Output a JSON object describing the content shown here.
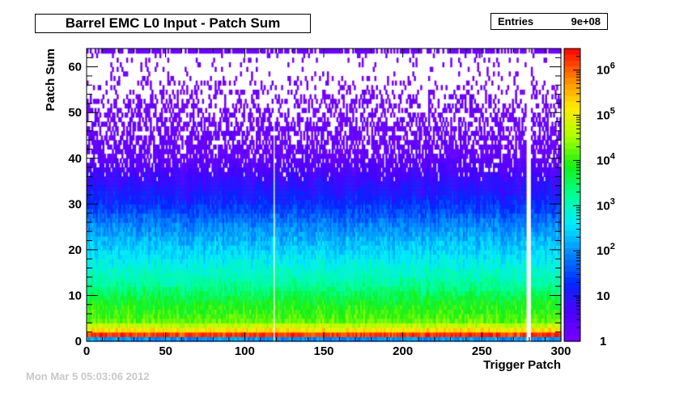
{
  "chart_data": {
    "type": "heatmap",
    "title": "Barrel EMC L0 Input - Patch Sum",
    "xlabel": "Trigger Patch",
    "ylabel": "Patch Sum",
    "xlim": [
      0,
      300
    ],
    "ylim": [
      0,
      64
    ],
    "x_ticks": [
      "0",
      "50",
      "100",
      "150",
      "200",
      "250",
      "300"
    ],
    "y_ticks": [
      "0",
      "10",
      "20",
      "30",
      "40",
      "50",
      "60"
    ],
    "z_scale": "log",
    "zlim": [
      1,
      3000000
    ],
    "z_ticks": [
      "1",
      "10",
      "10^2",
      "10^3",
      "10^4",
      "10^5",
      "10^6"
    ],
    "stats": {
      "label": "Entries",
      "value": "9e+08"
    },
    "empty_columns": [
      118,
      278,
      279,
      280
    ],
    "profile": [
      {
        "y": 0,
        "log10_counts": 2.0
      },
      {
        "y": 1,
        "log10_counts": 6.2
      },
      {
        "y": 2,
        "log10_counts": 5.2
      },
      {
        "y": 4,
        "log10_counts": 4.2
      },
      {
        "y": 8,
        "log10_counts": 3.8
      },
      {
        "y": 12,
        "log10_counts": 3.2
      },
      {
        "y": 20,
        "log10_counts": 2.4
      },
      {
        "y": 25,
        "log10_counts": 1.9
      },
      {
        "y": 30,
        "log10_counts": 1.25
      },
      {
        "y": 35,
        "log10_counts": 0.8
      },
      {
        "y": 40,
        "log10_counts": 0.3
      },
      {
        "y": 50,
        "log10_counts": 0.1
      },
      {
        "y": 63,
        "log10_counts": 0.0
      }
    ],
    "overflow_row": {
      "y": 63,
      "log10_counts": 0.15
    }
  },
  "footer_text": "Mon Mar  5 05:03:06 2012"
}
